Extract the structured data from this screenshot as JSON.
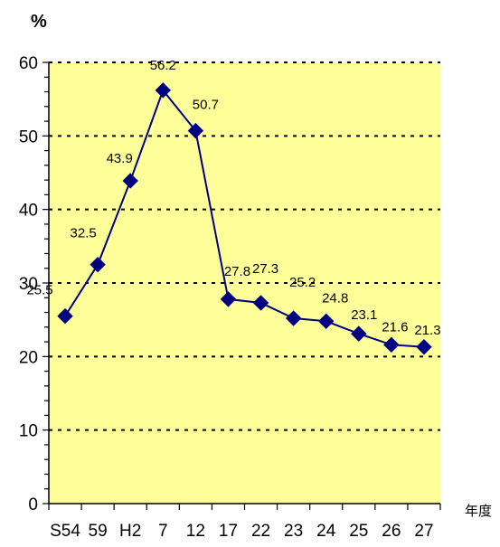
{
  "chart_data": {
    "type": "line",
    "title": "",
    "ylabel": "%",
    "xlabel": "年度",
    "categories": [
      "S54",
      "59",
      "H2",
      "7",
      "12",
      "17",
      "22",
      "23",
      "24",
      "25",
      "26",
      "27"
    ],
    "series": [
      {
        "values": [
          25.5,
          32.5,
          43.9,
          56.2,
          50.7,
          27.8,
          27.3,
          25.2,
          24.8,
          23.1,
          21.6,
          21.3
        ]
      }
    ],
    "ylim": [
      0,
      60
    ],
    "yticks": [
      0,
      10,
      20,
      30,
      40,
      50,
      60
    ],
    "grid": "horizontal dotted",
    "legend": "none",
    "colors": {
      "plot_background": "#ffff99",
      "line": "#000080",
      "marker": "#000080",
      "grid": "#000000"
    }
  }
}
